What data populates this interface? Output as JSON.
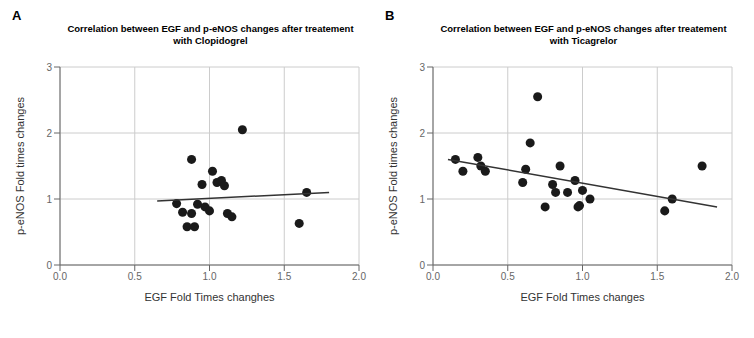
{
  "chart_data": [
    {
      "type": "scatter",
      "panel_label": "A",
      "title": [
        "Correlation between EGF and p-eNOS changes after treatement",
        "with Clopidogrel"
      ],
      "xlabel": "EGF Fold Times changhes",
      "ylabel": "p-eNOS Fold times changes",
      "xlim": [
        0.0,
        2.0
      ],
      "ylim": [
        0.0,
        3.0
      ],
      "xticks": [
        {
          "value": 0.0,
          "label": "0.0"
        },
        0.5,
        {
          "value": 1.0,
          "label": "1.0"
        },
        1.5,
        {
          "value": 2.0,
          "label": "2.0"
        }
      ],
      "yticks": [
        0,
        1,
        2,
        3
      ],
      "grid": true,
      "series": [
        {
          "type": "scatter",
          "color": "#1a1a1a",
          "x": [
            0.78,
            0.82,
            0.85,
            0.88,
            0.88,
            0.9,
            0.92,
            0.95,
            0.97,
            1.0,
            1.02,
            1.05,
            1.08,
            1.1,
            1.12,
            1.15,
            1.22,
            1.6,
            1.65
          ],
          "values": [
            0.93,
            0.8,
            0.58,
            0.78,
            1.6,
            0.58,
            0.92,
            1.22,
            0.88,
            0.82,
            1.42,
            1.25,
            1.28,
            1.2,
            0.78,
            0.73,
            2.05,
            0.63,
            1.1
          ]
        },
        {
          "type": "line",
          "color": "#333333",
          "x": [
            0.65,
            1.8
          ],
          "values": [
            0.97,
            1.1
          ]
        }
      ]
    },
    {
      "type": "scatter",
      "panel_label": "B",
      "title": [
        "Correlation between EGF and p-eNOS changes after treatement",
        "with Ticagrelor"
      ],
      "xlabel": "EGF Fold Times changes",
      "ylabel": "p-eNOS Fold times changes",
      "xlim": [
        0.0,
        2.0
      ],
      "ylim": [
        0.0,
        3.0
      ],
      "xticks": [
        {
          "value": 0.0,
          "label": "0.0"
        },
        0.5,
        {
          "value": 1.0,
          "label": "1.0"
        },
        1.5,
        {
          "value": 2.0,
          "label": "2.0"
        }
      ],
      "yticks": [
        0,
        1,
        2,
        3
      ],
      "grid": true,
      "series": [
        {
          "type": "scatter",
          "color": "#1a1a1a",
          "x": [
            0.15,
            0.2,
            0.3,
            0.32,
            0.35,
            0.6,
            0.62,
            0.65,
            0.7,
            0.75,
            0.8,
            0.82,
            0.85,
            0.9,
            0.95,
            0.97,
            0.98,
            1.0,
            1.05,
            1.55,
            1.6,
            1.8
          ],
          "values": [
            1.6,
            1.42,
            1.63,
            1.5,
            1.42,
            1.25,
            1.45,
            1.85,
            2.55,
            0.88,
            1.22,
            1.1,
            1.5,
            1.1,
            1.28,
            0.88,
            0.9,
            1.13,
            1.0,
            0.82,
            1.0,
            1.5
          ]
        },
        {
          "type": "line",
          "color": "#333333",
          "x": [
            0.1,
            1.9
          ],
          "values": [
            1.6,
            0.88
          ]
        }
      ]
    }
  ]
}
